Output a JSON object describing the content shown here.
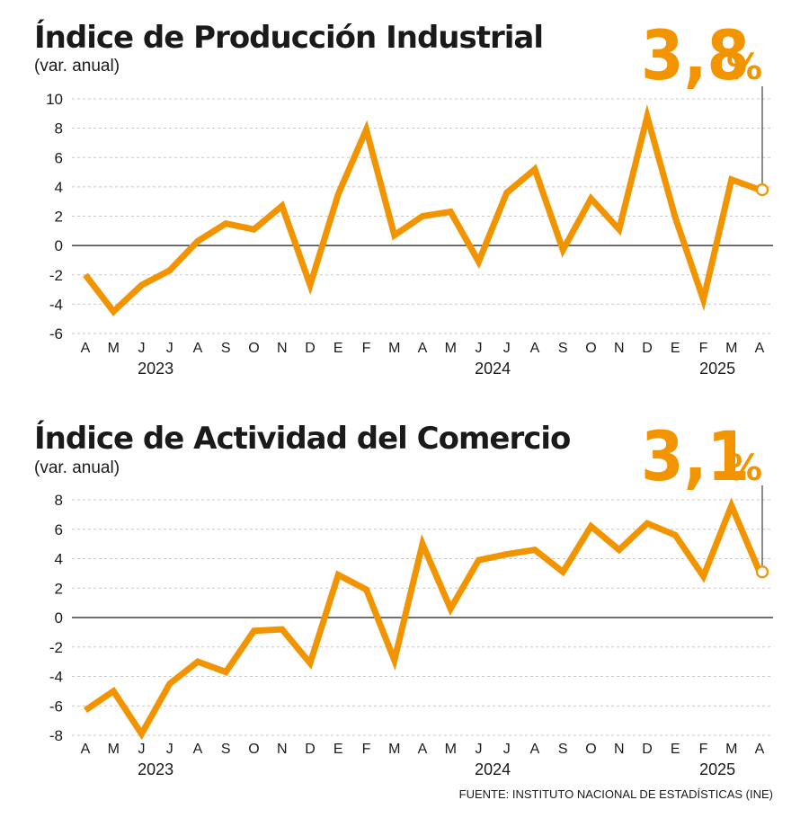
{
  "accent_color": "#f29400",
  "source": "FUENTE: INSTITUTO NACIONAL DE ESTADÍSTICAS (INE)",
  "chart_data": [
    {
      "type": "line",
      "title": "Índice de Producción Industrial",
      "subtitle": "(var. anual)",
      "highlight_value": "3,8",
      "highlight_unit": "%",
      "ylim": [
        -6,
        10
      ],
      "yticks": [
        10,
        8,
        6,
        4,
        2,
        0,
        -2,
        -4,
        -6
      ],
      "categories": [
        "A",
        "M",
        "J",
        "J",
        "A",
        "S",
        "O",
        "N",
        "D",
        "E",
        "F",
        "M",
        "A",
        "M",
        "J",
        "J",
        "A",
        "S",
        "O",
        "N",
        "D",
        "E",
        "F",
        "M",
        "A"
      ],
      "years": [
        {
          "label": "2023",
          "index": 2.5
        },
        {
          "label": "2024",
          "index": 14.5
        },
        {
          "label": "2025",
          "index": 22.5
        }
      ],
      "values": [
        -2.0,
        -4.5,
        -2.7,
        -1.7,
        0.3,
        1.5,
        1.1,
        2.7,
        -2.7,
        3.5,
        7.9,
        0.7,
        2.0,
        2.3,
        -1.1,
        3.6,
        5.2,
        -0.3,
        3.2,
        1.1,
        8.8,
        1.9,
        -3.7,
        4.5,
        3.8
      ]
    },
    {
      "type": "line",
      "title": "Índice de Actividad del Comercio",
      "subtitle": "(var. anual)",
      "highlight_value": "3,1",
      "highlight_unit": "%",
      "ylim": [
        -8,
        8
      ],
      "yticks": [
        8,
        6,
        4,
        2,
        0,
        -2,
        -4,
        -6,
        -8
      ],
      "categories": [
        "A",
        "M",
        "J",
        "J",
        "A",
        "S",
        "O",
        "N",
        "D",
        "E",
        "F",
        "M",
        "A",
        "M",
        "J",
        "J",
        "A",
        "S",
        "O",
        "N",
        "D",
        "E",
        "F",
        "M",
        "A"
      ],
      "years": [
        {
          "label": "2023",
          "index": 2.5
        },
        {
          "label": "2024",
          "index": 14.5
        },
        {
          "label": "2025",
          "index": 22.5
        }
      ],
      "values": [
        -6.3,
        -5.0,
        -7.9,
        -4.5,
        -3.0,
        -3.7,
        -0.9,
        -0.8,
        -3.1,
        2.9,
        1.9,
        -2.9,
        5.0,
        0.6,
        3.9,
        4.3,
        4.6,
        3.1,
        6.2,
        4.6,
        6.4,
        5.6,
        2.8,
        7.6,
        3.1
      ]
    }
  ]
}
